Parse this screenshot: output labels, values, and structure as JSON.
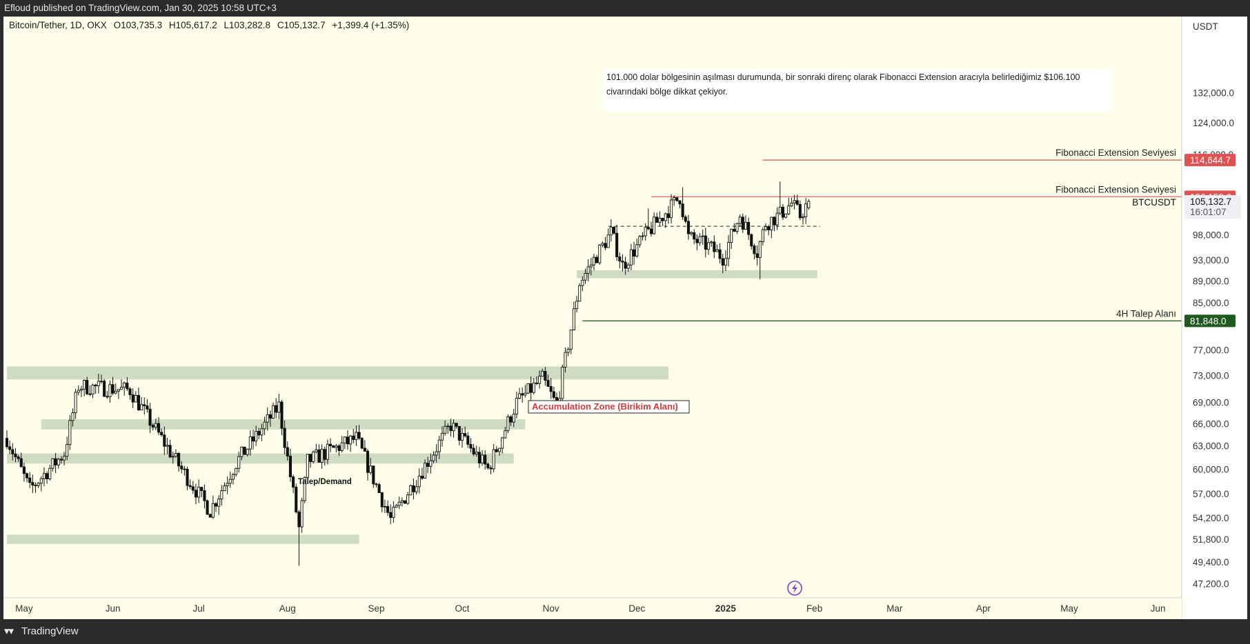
{
  "header": {
    "publish_line": "Efloud published on TradingView.com, Jan 30, 2025 10:58 UTC+3"
  },
  "footer": {
    "logo_glyph": "▾▾",
    "brand": "TradingView"
  },
  "chart_data": {
    "type": "candlestick",
    "symbol_line": {
      "symbol": "Bitcoin/Tether, 1D, OKX",
      "open": "O103,735.3",
      "high": "H105,617.2",
      "low": "L103,282.8",
      "close": "C105,132.7",
      "change": "+1,399.4 (+1.35%)"
    },
    "price_axis": {
      "currency": "USDT",
      "scale": "log",
      "ticks": [
        132000,
        124000,
        116000,
        98000,
        93000,
        89000,
        85000,
        77000,
        73000,
        69000,
        66000,
        63000,
        60000,
        57000,
        54200,
        51800,
        49400,
        47200
      ],
      "tick_labels": [
        "132,000.0",
        "124,000.0",
        "116,000.0",
        "98,000.0",
        "93,000.0",
        "89,000.0",
        "85,000.0",
        "77,000.0",
        "73,000.0",
        "69,000.0",
        "66,000.0",
        "63,000.0",
        "60,000.0",
        "57,000.0",
        "54,200.0",
        "51,800.0",
        "49,400.0",
        "47,200.0"
      ],
      "ylim": [
        46700,
        140500
      ]
    },
    "time_axis": {
      "labels": [
        "May",
        "Jun",
        "Jul",
        "Aug",
        "Sep",
        "Oct",
        "Nov",
        "Dec",
        "2025",
        "Feb",
        "Mar",
        "Apr",
        "May",
        "Jun"
      ],
      "bold_label": "2025"
    },
    "current_price": {
      "value": 105132.7,
      "label": "105,132.7",
      "symbol": "BTCUSDT",
      "countdown": "16:01:07"
    },
    "levels": [
      {
        "name": "Fibonacci Extension Seviyesi",
        "value": 114644.7,
        "label": "114,644.7",
        "color": "#e05252"
      },
      {
        "name": "Fibonacci Extension Seviyesi",
        "value": 106158.6,
        "label": "106,158.6",
        "color": "#e05252"
      },
      {
        "name": "4H Talep Alanı",
        "value": 81848.0,
        "label": "81,848.0",
        "color": "#1e5a1e"
      }
    ],
    "zones": [
      {
        "from": "Apr 25, 2024",
        "to": "Dec 12, 2024",
        "low": 72400,
        "high": 74400
      },
      {
        "from": "May 7, 2024",
        "to": "Oct 23, 2024",
        "low": 65200,
        "high": 66600
      },
      {
        "from": "Apr 25, 2024",
        "to": "Oct 19, 2024",
        "low": 60700,
        "high": 62000
      },
      {
        "from": "Apr 25, 2024",
        "to": "Aug 26, 2024",
        "low": 51300,
        "high": 52300
      },
      {
        "from": "Nov 10, 2024",
        "to": "Feb 2, 2025",
        "low": 89500,
        "high": 91000
      }
    ],
    "range_line": {
      "from": "Nov 21, 2024",
      "to": "Feb 3, 2025",
      "value": 99800,
      "style": "dashed"
    },
    "annotations": {
      "note": "101.000 dolar bölgesinin aşılması durumunda, bir sonraki direnç olarak Fibonacci Extension aracıyla belirlediğimiz $106.100 civarındaki bölge dikkat çekiyor.",
      "note_lines": [
        "101.000 dolar bölgesinin aşılması durumunda, bir sonraki direnç olarak Fibonacci Extension aracıyla belirlediğimiz $106.100",
        "civarındaki bölge dikkat çekiyor."
      ],
      "accumulation": "Accumulation Zone (Birikim Alanı)",
      "demand": "Talep/Demand"
    },
    "anchors": [
      {
        "date": "Apr 25, 2024",
        "price": 64000
      },
      {
        "date": "May 3, 2024",
        "price": 57500
      },
      {
        "date": "May 15, 2024",
        "price": 62000
      },
      {
        "date": "May 20, 2024",
        "price": 71400
      },
      {
        "date": "Jun 7, 2024",
        "price": 70800
      },
      {
        "date": "Jun 24, 2024",
        "price": 60500
      },
      {
        "date": "Jul 5, 2024",
        "price": 55000
      },
      {
        "date": "Jul 14, 2024",
        "price": 60800
      },
      {
        "date": "Jul 29, 2024",
        "price": 68500
      },
      {
        "date": "Aug 5, 2024",
        "price": 53000
      },
      {
        "date": "Aug 8, 2024",
        "price": 61000
      },
      {
        "date": "Aug 25, 2024",
        "price": 64000
      },
      {
        "date": "Sep 6, 2024",
        "price": 54000
      },
      {
        "date": "Sep 27, 2024",
        "price": 65800
      },
      {
        "date": "Oct 10, 2024",
        "price": 60000
      },
      {
        "date": "Oct 20, 2024",
        "price": 69000
      },
      {
        "date": "Oct 29, 2024",
        "price": 72500
      },
      {
        "date": "Nov 3, 2024",
        "price": 68500
      },
      {
        "date": "Nov 11, 2024",
        "price": 88700
      },
      {
        "date": "Nov 22, 2024",
        "price": 98500
      },
      {
        "date": "Nov 26, 2024",
        "price": 91900
      },
      {
        "date": "Dec 5, 2024",
        "price": 98700
      },
      {
        "date": "Dec 16, 2024",
        "price": 106100
      },
      {
        "date": "Dec 19, 2024",
        "price": 97500
      },
      {
        "date": "Dec 26, 2024",
        "price": 95700
      },
      {
        "date": "Dec 31, 2024",
        "price": 93500
      },
      {
        "date": "Jan 6, 2025",
        "price": 102200
      },
      {
        "date": "Jan 12, 2025",
        "price": 94500
      },
      {
        "date": "Jan 15, 2025",
        "price": 100400
      },
      {
        "date": "Jan 20, 2025",
        "price": 102300
      },
      {
        "date": "Jan 24, 2025",
        "price": 104700
      },
      {
        "date": "Jan 27, 2025",
        "price": 102000
      },
      {
        "date": "Jan 30, 2025",
        "price": 105132.7
      }
    ],
    "wick_extremes": [
      {
        "date": "Aug 5, 2024",
        "price": 49000,
        "kind": "low"
      },
      {
        "date": "Nov 26, 2024",
        "price": 90800,
        "kind": "low"
      },
      {
        "date": "Dec 5, 2024",
        "price": 103600,
        "kind": "high"
      },
      {
        "date": "Dec 17, 2024",
        "price": 108300,
        "kind": "high"
      },
      {
        "date": "Jan 13, 2025",
        "price": 89300,
        "kind": "low"
      },
      {
        "date": "Jan 20, 2025",
        "price": 109600,
        "kind": "high"
      }
    ]
  }
}
